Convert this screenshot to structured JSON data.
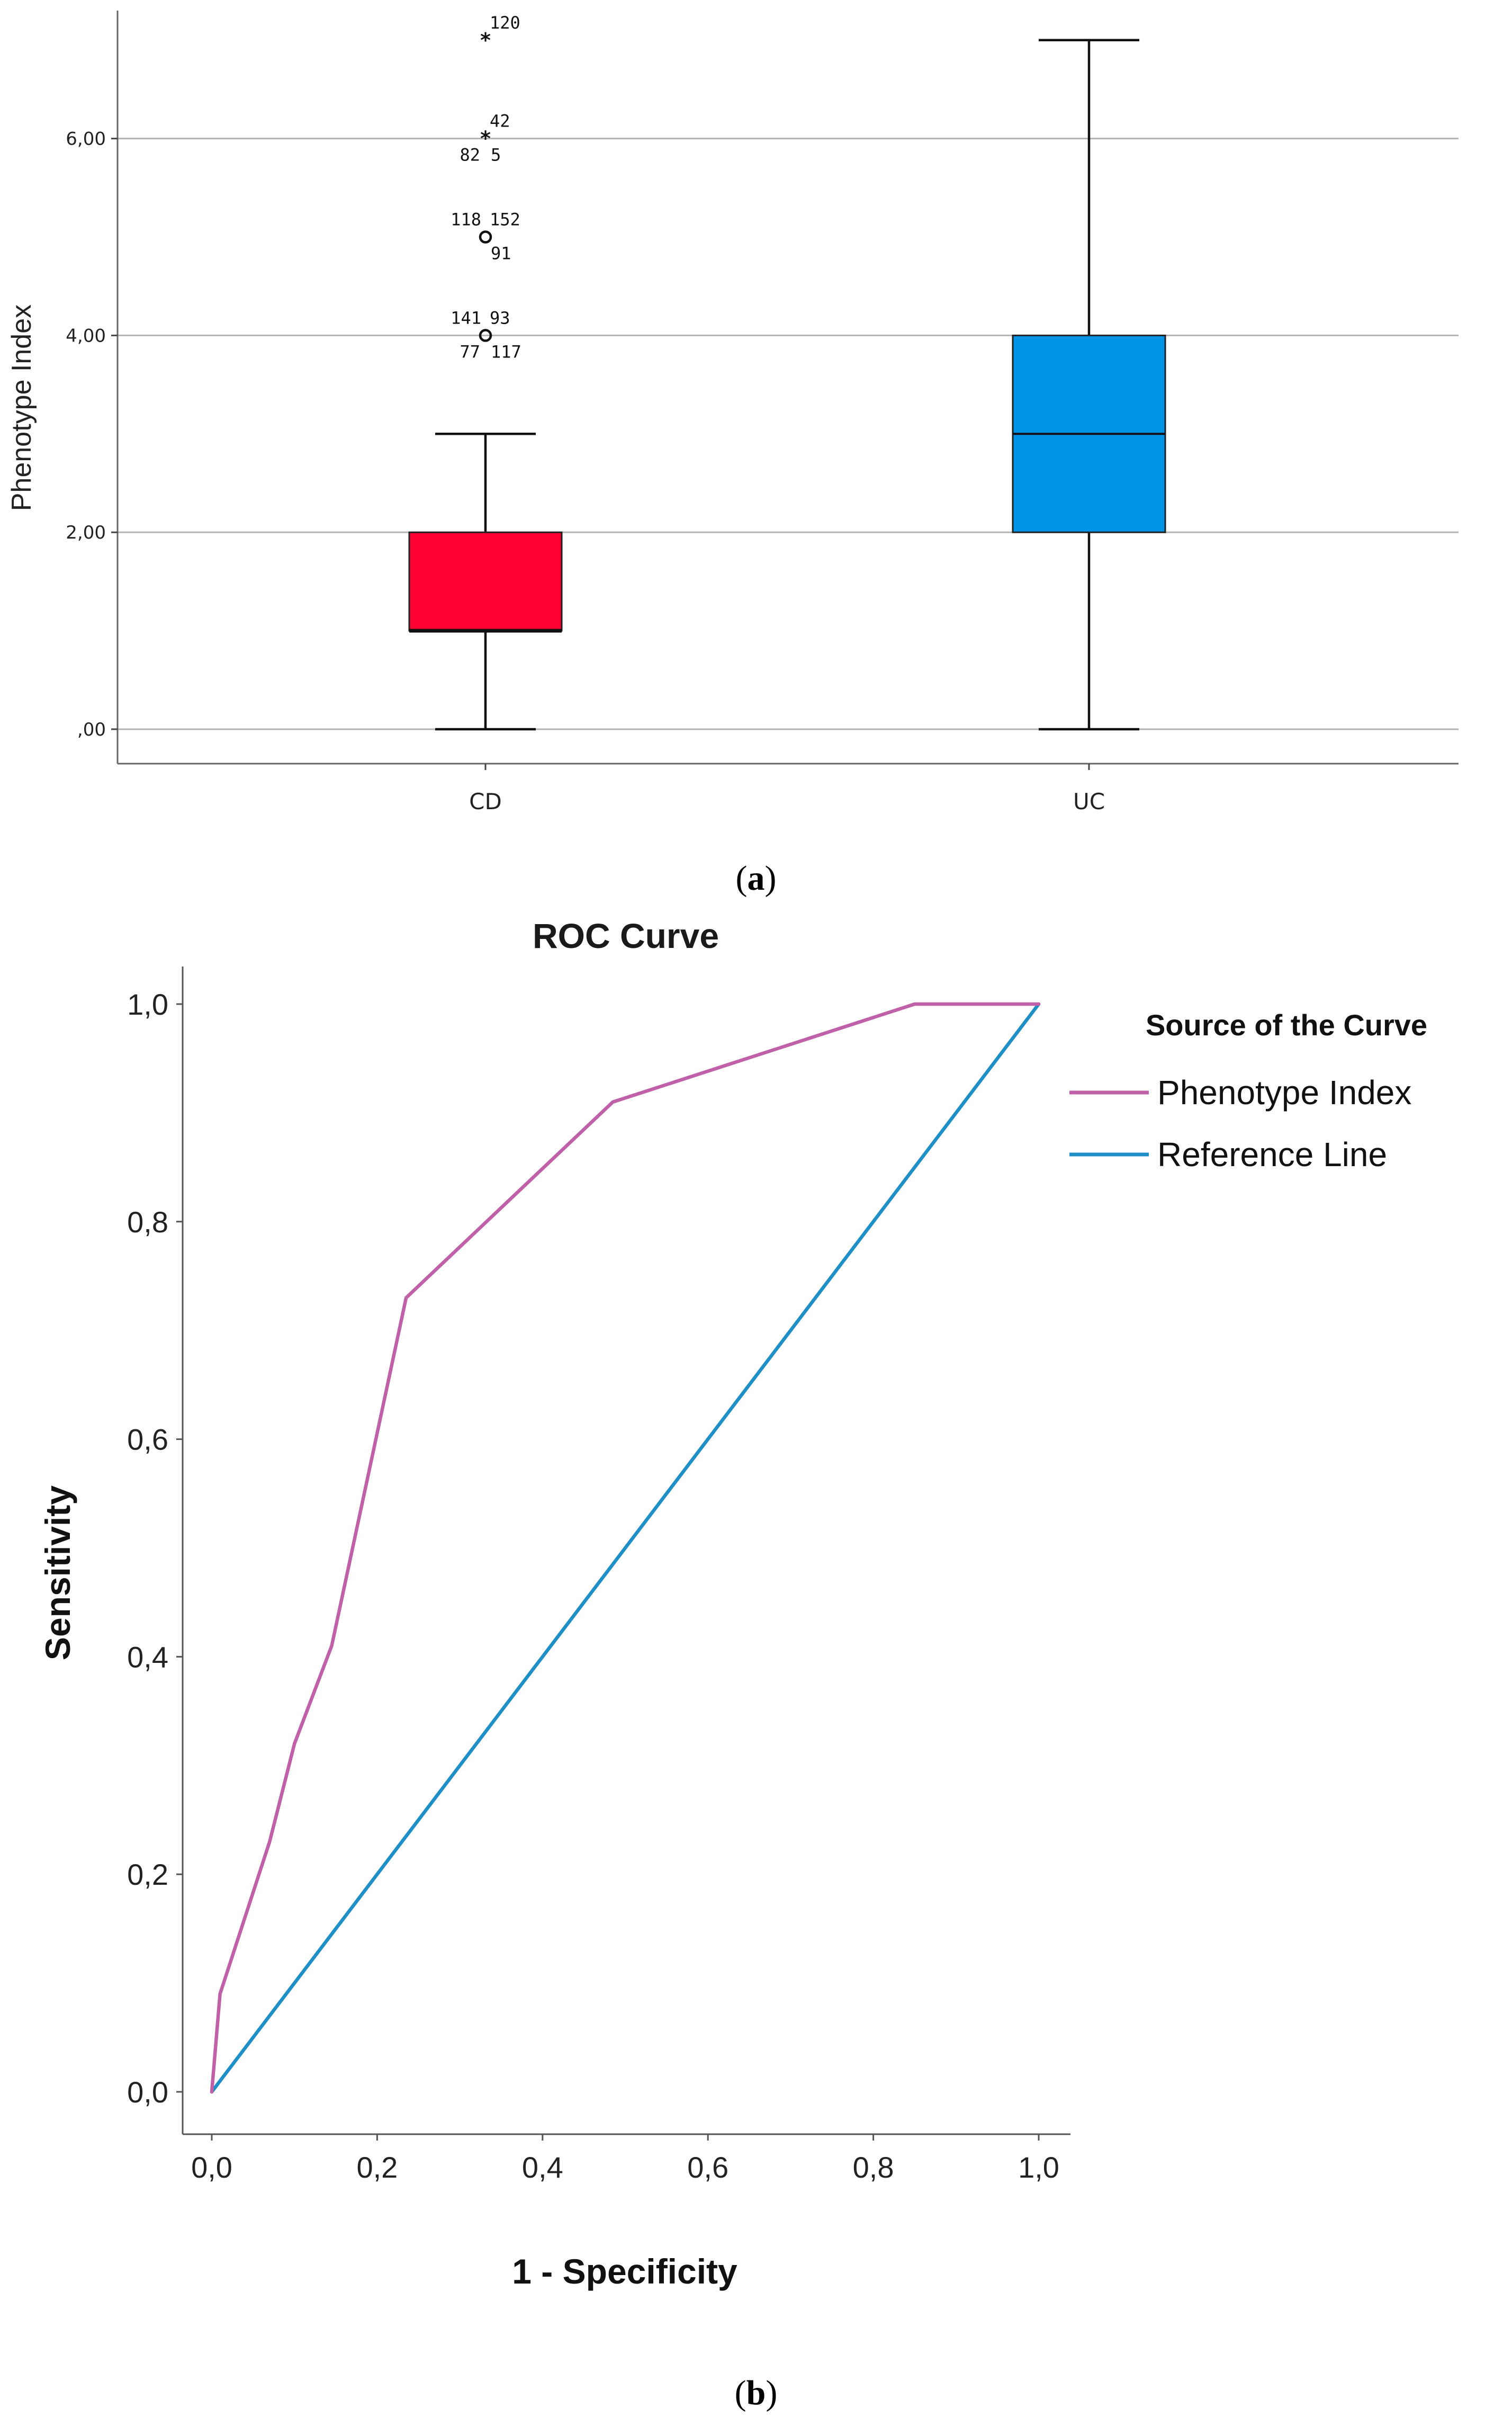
{
  "chart_data": [
    {
      "type": "box",
      "panel_caption": "(a)",
      "caption_letter": "a",
      "title": "",
      "xlabel": "",
      "ylabel": "Phenotype Index",
      "ylim": [
        -0.35,
        7.3
      ],
      "yticks": [
        0,
        2,
        4,
        6
      ],
      "ytick_labels": [
        ",00",
        "2,00",
        "4,00",
        "6,00"
      ],
      "grid": true,
      "categories": [
        "CD",
        "UC"
      ],
      "boxes": [
        {
          "category": "CD",
          "color": "#ff0033",
          "whisker_low": 0,
          "q1": 1,
          "median": 1,
          "q3": 2,
          "whisker_high": 3,
          "outliers": [
            {
              "value": 7,
              "marker": "star",
              "labels": [
                {
                  "text": "120",
                  "pos": "upper-right"
                }
              ]
            },
            {
              "value": 6,
              "marker": "star",
              "labels": [
                {
                  "text": "42",
                  "pos": "upper-right"
                },
                {
                  "text": "82",
                  "pos": "lower-left"
                },
                {
                  "text": "5",
                  "pos": "lower-right"
                }
              ]
            },
            {
              "value": 5,
              "marker": "circle",
              "labels": [
                {
                  "text": "118",
                  "pos": "upper-left"
                },
                {
                  "text": "152",
                  "pos": "upper-right"
                },
                {
                  "text": "91",
                  "pos": "lower-right"
                }
              ]
            },
            {
              "value": 4,
              "marker": "circle",
              "labels": [
                {
                  "text": "141",
                  "pos": "upper-left"
                },
                {
                  "text": "93",
                  "pos": "upper-right"
                },
                {
                  "text": "77",
                  "pos": "lower-left"
                },
                {
                  "text": "117",
                  "pos": "lower-right"
                }
              ]
            }
          ]
        },
        {
          "category": "UC",
          "color": "#0094e6",
          "whisker_low": 0,
          "q1": 2,
          "median": 3,
          "q3": 4,
          "whisker_high": 7,
          "outliers": []
        }
      ]
    },
    {
      "type": "line",
      "panel_caption": "(b)",
      "caption_letter": "b",
      "title": "ROC Curve",
      "xlabel": "1 - Specificity",
      "ylabel": "Sensitivity",
      "xlim": [
        0,
        1
      ],
      "ylim": [
        0,
        1
      ],
      "xticks": [
        0,
        0.2,
        0.4,
        0.6,
        0.8,
        1.0
      ],
      "xtick_labels": [
        "0,0",
        "0,2",
        "0,4",
        "0,6",
        "0,8",
        "1,0"
      ],
      "yticks": [
        0,
        0.2,
        0.4,
        0.6,
        0.8,
        1.0
      ],
      "ytick_labels": [
        "0,0",
        "0,2",
        "0,4",
        "0,6",
        "0,8",
        "1,0"
      ],
      "grid": false,
      "legend": {
        "title": "Source of the Curve",
        "placement": "right"
      },
      "series": [
        {
          "name": "Phenotype Index",
          "color": "#c060a8",
          "x": [
            0,
            0.01,
            0.07,
            0.1,
            0.145,
            0.235,
            0.485,
            0.85,
            1.0
          ],
          "y": [
            0,
            0.09,
            0.23,
            0.32,
            0.41,
            0.73,
            0.91,
            1.0,
            1.0
          ]
        },
        {
          "name": "Reference Line",
          "color": "#1f8fc8",
          "x": [
            0,
            1
          ],
          "y": [
            0,
            1
          ]
        }
      ]
    }
  ]
}
